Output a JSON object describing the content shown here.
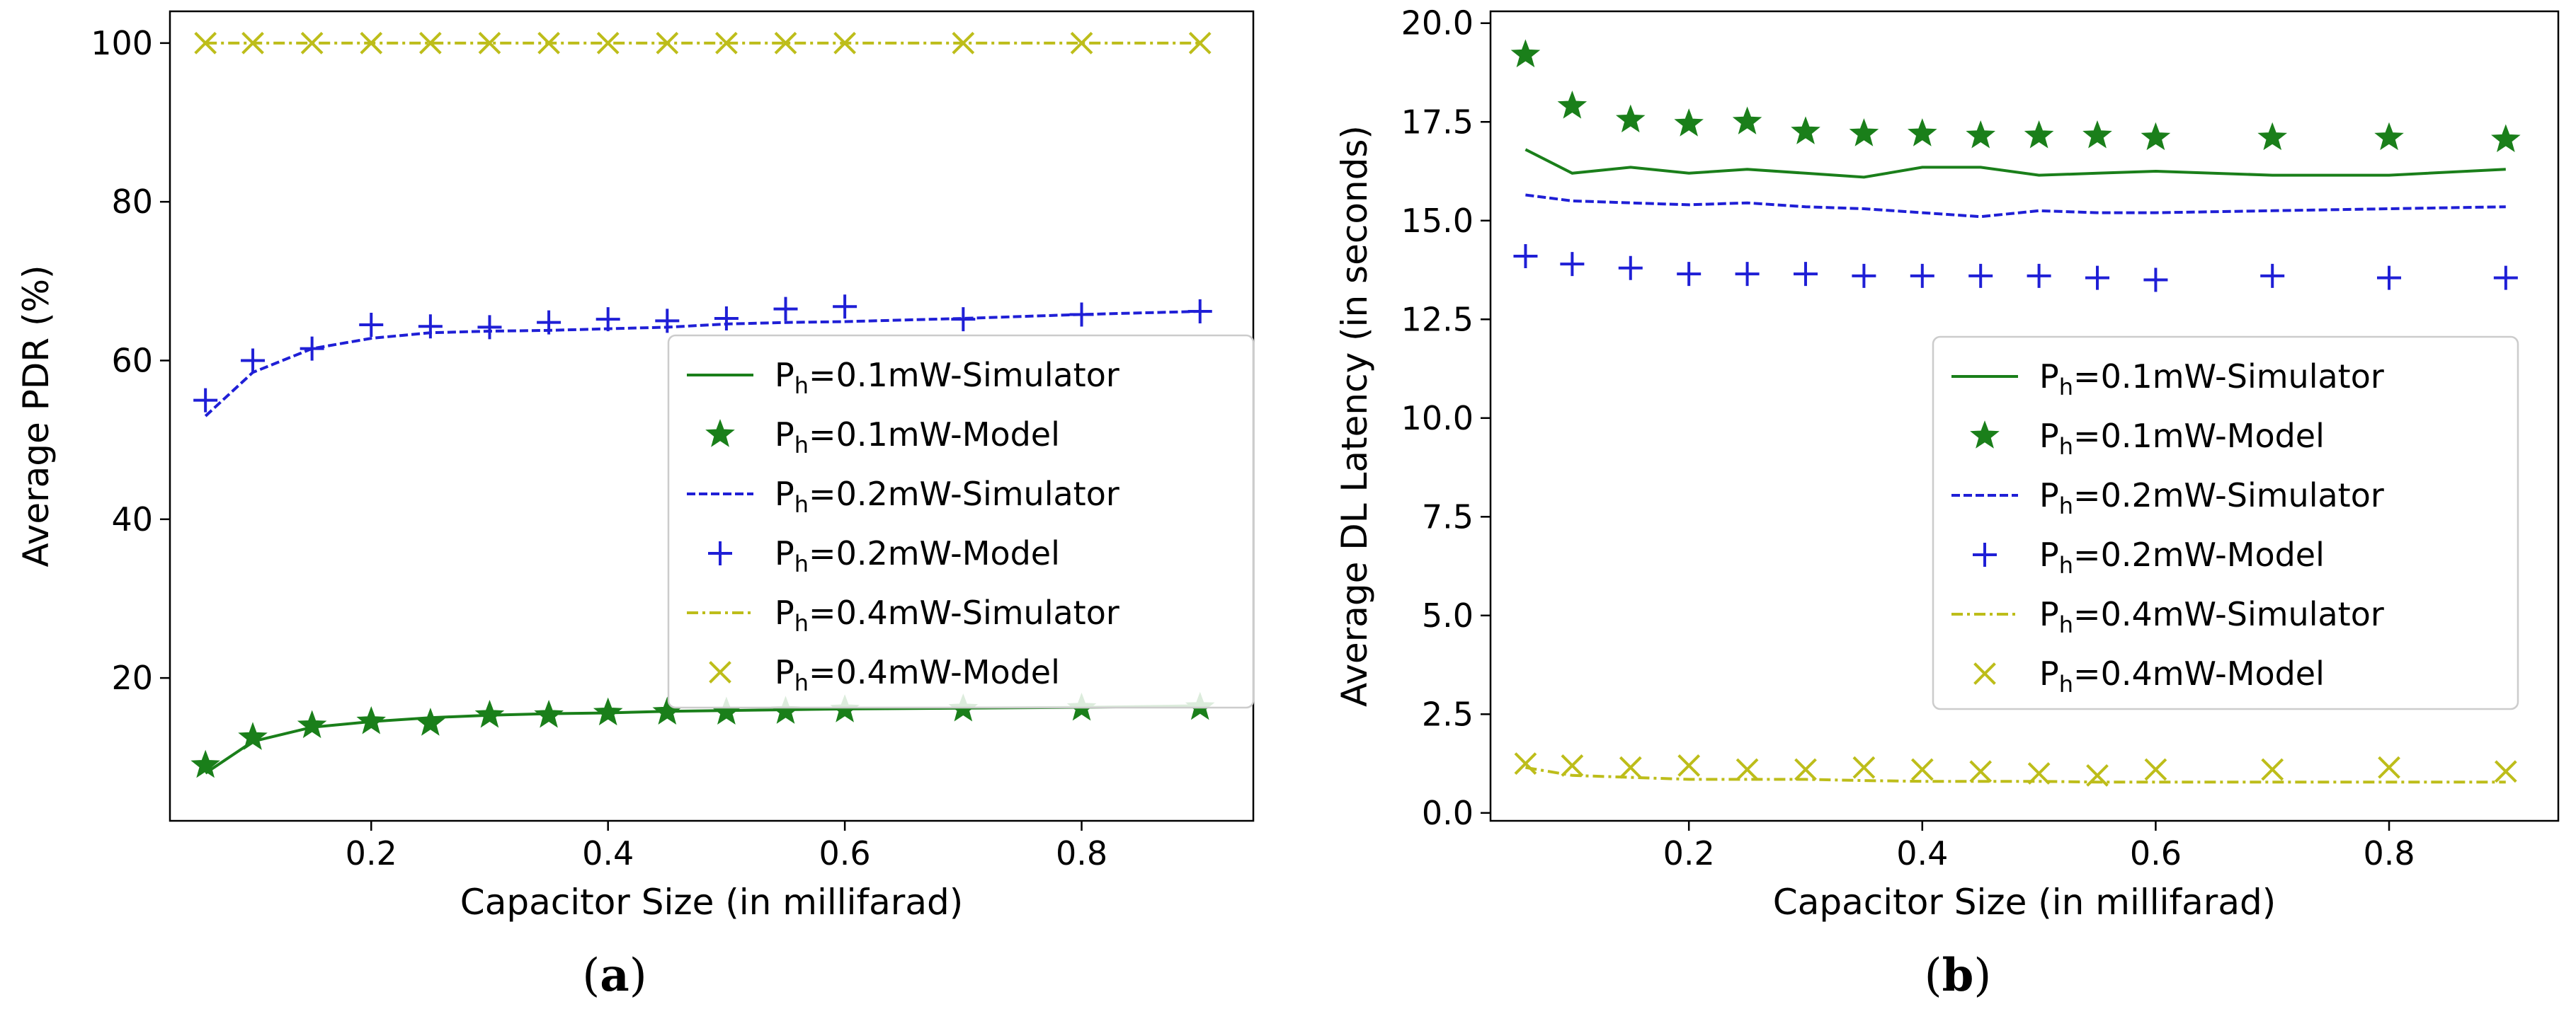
{
  "chart_data": [
    {
      "type": "line",
      "panel": "(a)",
      "panel_letter": "a",
      "xlabel": "Capacitor Size (in millifarad)",
      "ylabel": "Average PDR (%)",
      "xlim": [
        0.03,
        0.945
      ],
      "ylim": [
        2,
        104
      ],
      "xticks": [
        0.2,
        0.4,
        0.6,
        0.8
      ],
      "xtick_labels": [
        "0.2",
        "0.4",
        "0.6",
        "0.8"
      ],
      "yticks": [
        20,
        40,
        60,
        80,
        100
      ],
      "ytick_labels": [
        "20",
        "40",
        "60",
        "80",
        "100"
      ],
      "legend_position": "center-right",
      "series": [
        {
          "name": "P_h=0.1mW-Simulator",
          "legend_main": "P",
          "legend_sub": "h",
          "legend_rest": "=0.1mW-Simulator",
          "color": "#1a7f1a",
          "style": "solid",
          "x": [
            0.06,
            0.1,
            0.15,
            0.2,
            0.25,
            0.3,
            0.35,
            0.4,
            0.45,
            0.5,
            0.55,
            0.6,
            0.7,
            0.8,
            0.9
          ],
          "y": [
            8,
            12,
            13.8,
            14.5,
            15,
            15.3,
            15.5,
            15.6,
            15.8,
            15.9,
            16,
            16.1,
            16.2,
            16.3,
            16.5
          ]
        },
        {
          "name": "P_h=0.1mW-Model",
          "legend_main": "P",
          "legend_sub": "h",
          "legend_rest": "=0.1mW-Model",
          "color": "#1a7f1a",
          "marker": "star",
          "x": [
            0.06,
            0.1,
            0.15,
            0.2,
            0.25,
            0.3,
            0.35,
            0.4,
            0.45,
            0.5,
            0.55,
            0.6,
            0.7,
            0.8,
            0.9
          ],
          "y": [
            9,
            12.5,
            14,
            14.5,
            14.3,
            15.3,
            15.3,
            15.6,
            15.7,
            15.7,
            15.8,
            16,
            16.1,
            16.2,
            16.3
          ]
        },
        {
          "name": "P_h=0.2mW-Simulator",
          "legend_main": "P",
          "legend_sub": "h",
          "legend_rest": "=0.2mW-Simulator",
          "color": "#1f1fd6",
          "style": "dashed",
          "x": [
            0.06,
            0.1,
            0.15,
            0.2,
            0.25,
            0.3,
            0.35,
            0.4,
            0.45,
            0.5,
            0.55,
            0.6,
            0.7,
            0.8,
            0.9
          ],
          "y": [
            53,
            58.5,
            61.5,
            62.8,
            63.5,
            63.7,
            63.8,
            64,
            64.2,
            64.6,
            64.8,
            64.9,
            65.3,
            65.8,
            66.2
          ]
        },
        {
          "name": "P_h=0.2mW-Model",
          "legend_main": "P",
          "legend_sub": "h",
          "legend_rest": "=0.2mW-Model",
          "color": "#1f1fd6",
          "marker": "plus",
          "x": [
            0.06,
            0.1,
            0.15,
            0.2,
            0.25,
            0.3,
            0.35,
            0.4,
            0.45,
            0.5,
            0.55,
            0.6,
            0.7,
            0.8,
            0.9
          ],
          "y": [
            55,
            60,
            61.5,
            64.5,
            64.3,
            64.2,
            64.8,
            65.2,
            65,
            65.3,
            66.5,
            66.8,
            65.2,
            65.8,
            66.2
          ]
        },
        {
          "name": "P_h=0.4mW-Simulator",
          "legend_main": "P",
          "legend_sub": "h",
          "legend_rest": "=0.4mW-Simulator",
          "color": "#bdbd1a",
          "style": "dashdot",
          "x": [
            0.06,
            0.1,
            0.15,
            0.2,
            0.25,
            0.3,
            0.35,
            0.4,
            0.45,
            0.5,
            0.55,
            0.6,
            0.7,
            0.8,
            0.9
          ],
          "y": [
            100,
            100,
            100,
            100,
            100,
            100,
            100,
            100,
            100,
            100,
            100,
            100,
            100,
            100,
            100
          ]
        },
        {
          "name": "P_h=0.4mW-Model",
          "legend_main": "P",
          "legend_sub": "h",
          "legend_rest": "=0.4mW-Model",
          "color": "#bdbd1a",
          "marker": "x",
          "x": [
            0.06,
            0.1,
            0.15,
            0.2,
            0.25,
            0.3,
            0.35,
            0.4,
            0.45,
            0.5,
            0.55,
            0.6,
            0.7,
            0.8,
            0.9
          ],
          "y": [
            100,
            100,
            100,
            100,
            100,
            100,
            100,
            100,
            100,
            100,
            100,
            100,
            100,
            100,
            100
          ]
        }
      ]
    },
    {
      "type": "line",
      "panel": "(b)",
      "panel_letter": "b",
      "xlabel": "Capacitor Size (in millifarad)",
      "ylabel": "Average DL Latency (in seconds)",
      "xlim": [
        0.03,
        0.945
      ],
      "ylim": [
        -0.2,
        20.3
      ],
      "xticks": [
        0.2,
        0.4,
        0.6,
        0.8
      ],
      "xtick_labels": [
        "0.2",
        "0.4",
        "0.6",
        "0.8"
      ],
      "yticks": [
        0,
        2.5,
        5,
        7.5,
        10,
        12.5,
        15,
        17.5,
        20
      ],
      "ytick_labels": [
        "0.0",
        "2.5",
        "5.0",
        "7.5",
        "10.0",
        "12.5",
        "15.0",
        "17.5",
        "20.0"
      ],
      "legend_position": "center-right",
      "series": [
        {
          "name": "P_h=0.1mW-Simulator",
          "legend_main": "P",
          "legend_sub": "h",
          "legend_rest": "=0.1mW-Simulator",
          "color": "#1a7f1a",
          "style": "solid",
          "x": [
            0.06,
            0.1,
            0.15,
            0.2,
            0.25,
            0.3,
            0.35,
            0.4,
            0.45,
            0.5,
            0.55,
            0.6,
            0.7,
            0.8,
            0.9
          ],
          "y": [
            16.8,
            16.2,
            16.35,
            16.2,
            16.3,
            16.2,
            16.1,
            16.35,
            16.35,
            16.15,
            16.2,
            16.25,
            16.15,
            16.15,
            16.3
          ]
        },
        {
          "name": "P_h=0.1mW-Model",
          "legend_main": "P",
          "legend_sub": "h",
          "legend_rest": "=0.1mW-Model",
          "color": "#1a7f1a",
          "marker": "star",
          "x": [
            0.06,
            0.1,
            0.15,
            0.2,
            0.25,
            0.3,
            0.35,
            0.4,
            0.45,
            0.5,
            0.55,
            0.6,
            0.7,
            0.8,
            0.9
          ],
          "y": [
            19.2,
            17.9,
            17.55,
            17.45,
            17.5,
            17.25,
            17.2,
            17.2,
            17.15,
            17.15,
            17.15,
            17.1,
            17.1,
            17.1,
            17.05
          ]
        },
        {
          "name": "P_h=0.2mW-Simulator",
          "legend_main": "P",
          "legend_sub": "h",
          "legend_rest": "=0.2mW-Simulator",
          "color": "#1f1fd6",
          "style": "dashed",
          "x": [
            0.06,
            0.1,
            0.15,
            0.2,
            0.25,
            0.3,
            0.35,
            0.4,
            0.45,
            0.5,
            0.55,
            0.6,
            0.7,
            0.8,
            0.9
          ],
          "y": [
            15.65,
            15.5,
            15.45,
            15.4,
            15.45,
            15.35,
            15.3,
            15.2,
            15.1,
            15.25,
            15.2,
            15.2,
            15.25,
            15.3,
            15.35
          ]
        },
        {
          "name": "P_h=0.2mW-Model",
          "legend_main": "P",
          "legend_sub": "h",
          "legend_rest": "=0.2mW-Model",
          "color": "#1f1fd6",
          "marker": "plus",
          "x": [
            0.06,
            0.1,
            0.15,
            0.2,
            0.25,
            0.3,
            0.35,
            0.4,
            0.45,
            0.5,
            0.55,
            0.6,
            0.7,
            0.8,
            0.9
          ],
          "y": [
            14.1,
            13.9,
            13.8,
            13.65,
            13.65,
            13.65,
            13.6,
            13.6,
            13.6,
            13.6,
            13.55,
            13.5,
            13.6,
            13.55,
            13.55
          ]
        },
        {
          "name": "P_h=0.4mW-Simulator",
          "legend_main": "P",
          "legend_sub": "h",
          "legend_rest": "=0.4mW-Simulator",
          "color": "#bdbd1a",
          "style": "dashdot",
          "x": [
            0.06,
            0.1,
            0.15,
            0.2,
            0.25,
            0.3,
            0.35,
            0.4,
            0.45,
            0.5,
            0.55,
            0.6,
            0.7,
            0.8,
            0.9
          ],
          "y": [
            1.15,
            0.95,
            0.9,
            0.85,
            0.85,
            0.85,
            0.82,
            0.8,
            0.8,
            0.8,
            0.78,
            0.78,
            0.78,
            0.78,
            0.78
          ]
        },
        {
          "name": "P_h=0.4mW-Model",
          "legend_main": "P",
          "legend_sub": "h",
          "legend_rest": "=0.4mW-Model",
          "color": "#bdbd1a",
          "marker": "x",
          "x": [
            0.06,
            0.1,
            0.15,
            0.2,
            0.25,
            0.3,
            0.35,
            0.4,
            0.45,
            0.5,
            0.55,
            0.6,
            0.7,
            0.8,
            0.9
          ],
          "y": [
            1.25,
            1.2,
            1.15,
            1.2,
            1.1,
            1.1,
            1.15,
            1.1,
            1.05,
            1.0,
            0.95,
            1.1,
            1.1,
            1.15,
            1.05
          ]
        }
      ]
    }
  ]
}
